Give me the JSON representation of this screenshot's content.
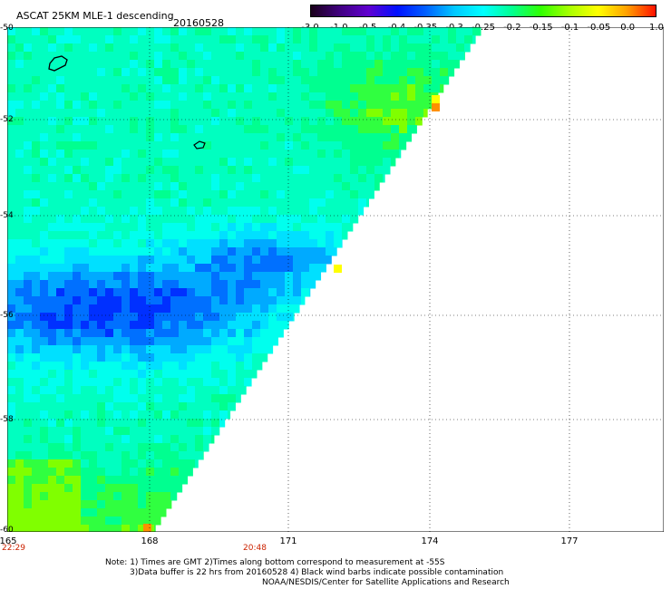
{
  "header": {
    "title": "ASCAT 25KM MLE-1 descending",
    "date": "20160528"
  },
  "colorbar": {
    "labels": [
      "-3.0",
      "-1.0",
      "-0.5",
      "-0.4",
      "-0.35",
      "-0.3",
      "-0.25",
      "-0.2",
      "-0.15",
      "-0.1",
      "-0.05",
      "0.0",
      "1.0"
    ],
    "colors": [
      "#1a001a",
      "#400080",
      "#6000d0",
      "#0010ff",
      "#0060ff",
      "#00c8ff",
      "#00ffff",
      "#00ff90",
      "#30ff00",
      "#a8ff00",
      "#ffff00",
      "#ffa000",
      "#ff1000"
    ]
  },
  "map": {
    "lat_labels": [
      "-50",
      "-52",
      "-54",
      "-56",
      "-58",
      "-60"
    ],
    "lon_labels": [
      "165",
      "168",
      "171",
      "174",
      "177"
    ],
    "times": [
      "22:29",
      "20:48"
    ]
  },
  "notes": {
    "line1": "Note: 1) Times are GMT 2)Times along bottom correspond to measurement at -55S",
    "line2": "3)Data buffer is 22 hrs from 20160528 4) Black wind barbs indicate possible contamination",
    "line3": "NOAA/NESDIS/Center for Satellite Applications and Research"
  }
}
